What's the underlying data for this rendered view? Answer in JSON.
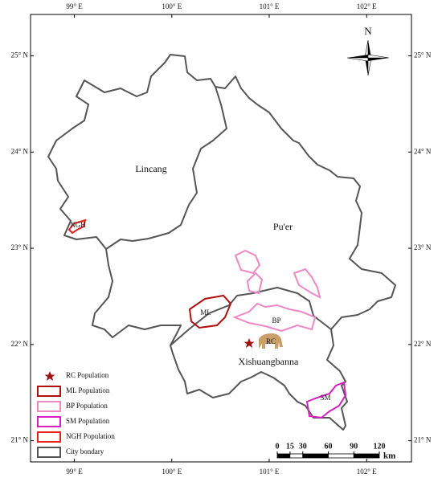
{
  "map": {
    "lon_extent": [
      98.55,
      102.46
    ],
    "lat_extent": [
      20.78,
      25.43
    ],
    "lon_ticks": [
      {
        "value": 99,
        "label": "99° E"
      },
      {
        "value": 100,
        "label": "100° E"
      },
      {
        "value": 101,
        "label": "101° E"
      },
      {
        "value": 102,
        "label": "102° E"
      }
    ],
    "lat_ticks": [
      {
        "value": 25,
        "label": "25° N"
      },
      {
        "value": 24,
        "label": "24° N"
      },
      {
        "value": 23,
        "label": "23° N"
      },
      {
        "value": 22,
        "label": "22° N"
      },
      {
        "value": 21,
        "label": "21° N"
      }
    ],
    "regions": [
      "Lincang",
      "Pu'er",
      "Xishuangbanna"
    ],
    "population_labels": [
      "NGH",
      "ML",
      "BP",
      "RC",
      "SM"
    ],
    "north_label": "N",
    "legend": [
      "RC Population",
      "ML Population",
      "BP Population",
      "SM Population",
      "NGH Population",
      "City bondary"
    ],
    "scale_bar": {
      "ticks": [
        0,
        15,
        30,
        60,
        90,
        120
      ],
      "unit": "km"
    }
  }
}
